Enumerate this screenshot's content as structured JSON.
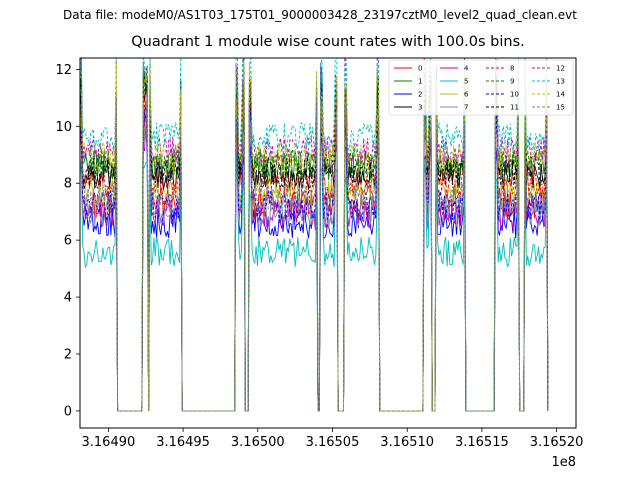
{
  "chart_data": {
    "type": "line",
    "suptitle": "Data file: modeM0/AS1T03_175T01_9000003428_23197cztM0_level2_quad_clean.evt",
    "title": "Quadrant 1 module wise count rates with 100.0s bins.",
    "xlabel": "",
    "ylabel": "",
    "x_offset_label": "1e8",
    "x_scale": 100000000,
    "xlim": [
      3.164881,
      3.165213
    ],
    "ylim": [
      -0.6,
      12.4
    ],
    "x_ticks": [
      3.1649,
      3.16495,
      3.165,
      3.16505,
      3.1651,
      3.16515,
      3.1652
    ],
    "x_tick_labels": [
      "3.16490",
      "3.16495",
      "3.16500",
      "3.16505",
      "3.16510",
      "3.16515",
      "3.16520"
    ],
    "y_ticks": [
      0,
      2,
      4,
      6,
      8,
      10,
      12
    ],
    "y_tick_labels": [
      "0",
      "2",
      "4",
      "6",
      "8",
      "10",
      "12"
    ],
    "grid": false,
    "legend_position": "upper-right",
    "active_segments": [
      [
        3.164881,
        3.164906
      ],
      [
        3.164923,
        3.164926
      ],
      [
        3.164927,
        3.164949
      ],
      [
        3.164985,
        3.164991
      ],
      [
        3.164994,
        3.16504
      ],
      [
        3.165042,
        3.165053
      ],
      [
        3.165058,
        3.165081
      ],
      [
        3.165111,
        3.165116
      ],
      [
        3.165119,
        3.165139
      ],
      [
        3.165159,
        3.165175
      ],
      [
        3.165178,
        3.165194
      ]
    ],
    "series": [
      {
        "name": "0",
        "color": "#ff0000",
        "style": "solid",
        "level": 7.3
      },
      {
        "name": "1",
        "color": "#008000",
        "style": "solid",
        "level": 8.6
      },
      {
        "name": "2",
        "color": "#0000ff",
        "style": "solid",
        "level": 6.6
      },
      {
        "name": "3",
        "color": "#000000",
        "style": "solid",
        "level": 8.3
      },
      {
        "name": "4",
        "color": "#bf00bf",
        "style": "solid",
        "level": 6.9
      },
      {
        "name": "5",
        "color": "#00bfbf",
        "style": "solid",
        "level": 5.6
      },
      {
        "name": "6",
        "color": "#bfbf00",
        "style": "solid",
        "level": 7.7
      },
      {
        "name": "7",
        "color": "#8a8aa8",
        "style": "solid",
        "level": 7.0
      },
      {
        "name": "8",
        "color": "#ff0000",
        "style": "dashed",
        "level": 8.0
      },
      {
        "name": "9",
        "color": "#008000",
        "style": "dashed",
        "level": 8.7
      },
      {
        "name": "10",
        "color": "#0000ff",
        "style": "dashed",
        "level": 7.2
      },
      {
        "name": "11",
        "color": "#000000",
        "style": "dashed",
        "level": 8.4
      },
      {
        "name": "12",
        "color": "#bf00bf",
        "style": "dashed",
        "level": 9.1
      },
      {
        "name": "13",
        "color": "#00bfbf",
        "style": "dashed",
        "level": 9.6
      },
      {
        "name": "14",
        "color": "#bfbf00",
        "style": "dashed",
        "level": 8.9
      },
      {
        "name": "15",
        "color": "#7f7f7f",
        "style": "dashed",
        "level": 7.5
      }
    ]
  }
}
